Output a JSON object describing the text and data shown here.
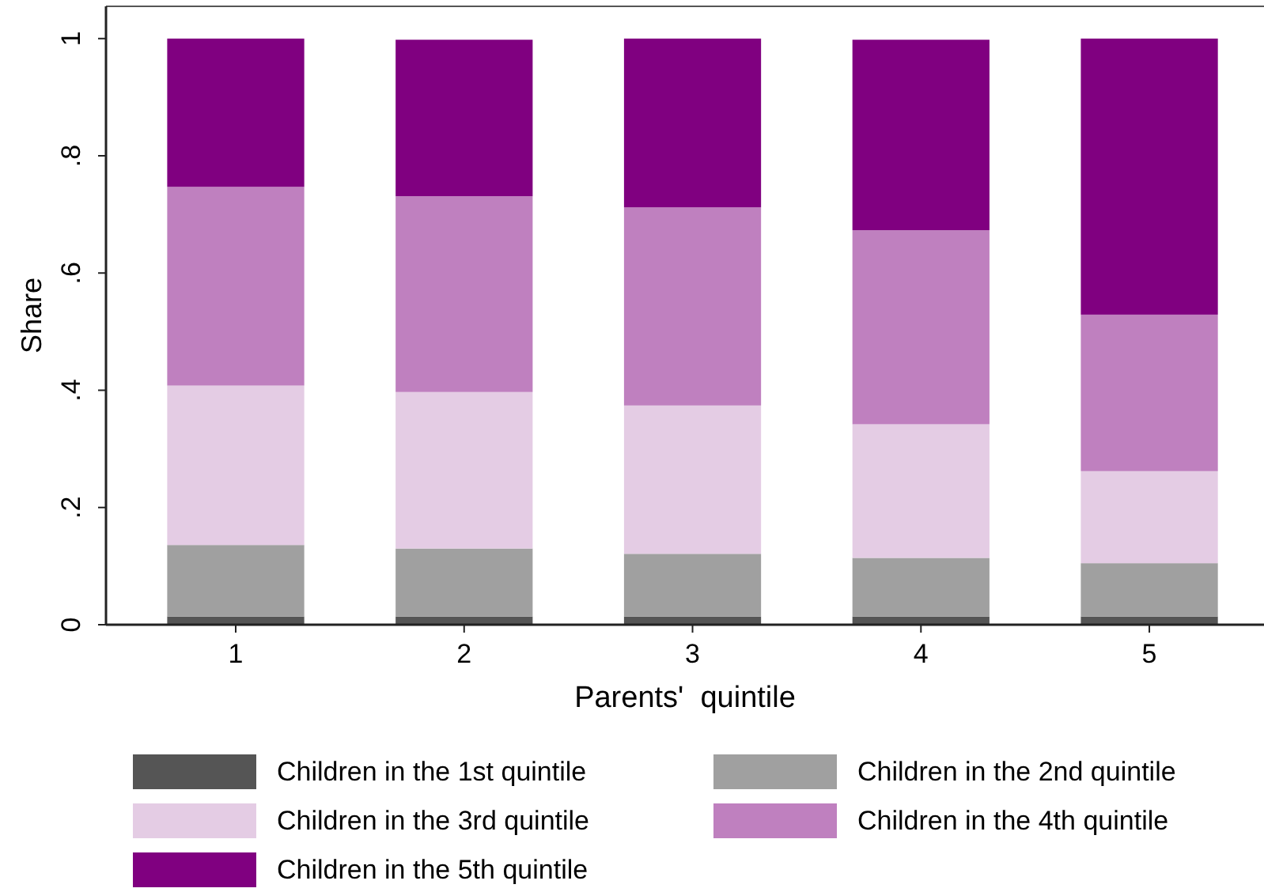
{
  "chart_data": {
    "type": "bar",
    "stacked": true,
    "xlabel": "Parents'  quintile",
    "ylabel": "Share",
    "categories": [
      "1",
      "2",
      "3",
      "4",
      "5"
    ],
    "ylim": [
      0,
      1.055
    ],
    "yticks": [
      0,
      {
        "value": 0.2,
        "label": ".2"
      },
      {
        "value": 0.4,
        "label": ".4"
      },
      {
        "value": 0.6,
        "label": ".6"
      },
      {
        "value": 0.8,
        "label": ".8"
      },
      1
    ],
    "grid": false,
    "legend": "bottom",
    "series": [
      {
        "name": "Children in the 1st quintile",
        "color": "#555555",
        "values": [
          0.014,
          0.014,
          0.014,
          0.014,
          0.014
        ]
      },
      {
        "name": "Children in the 2nd quintile",
        "color": "#a0a0a0",
        "values": [
          0.122,
          0.116,
          0.107,
          0.1,
          0.091
        ]
      },
      {
        "name": "Children in the 3rd quintile",
        "color": "#e4cce4",
        "values": [
          0.272,
          0.267,
          0.253,
          0.228,
          0.157
        ]
      },
      {
        "name": "Children in the 4th quintile",
        "color": "#bf80bf",
        "values": [
          0.339,
          0.334,
          0.338,
          0.331,
          0.267
        ]
      },
      {
        "name": "Children in the 5th quintile",
        "color": "#800080",
        "values": [
          0.253,
          0.267,
          0.288,
          0.325,
          0.471
        ]
      }
    ]
  }
}
